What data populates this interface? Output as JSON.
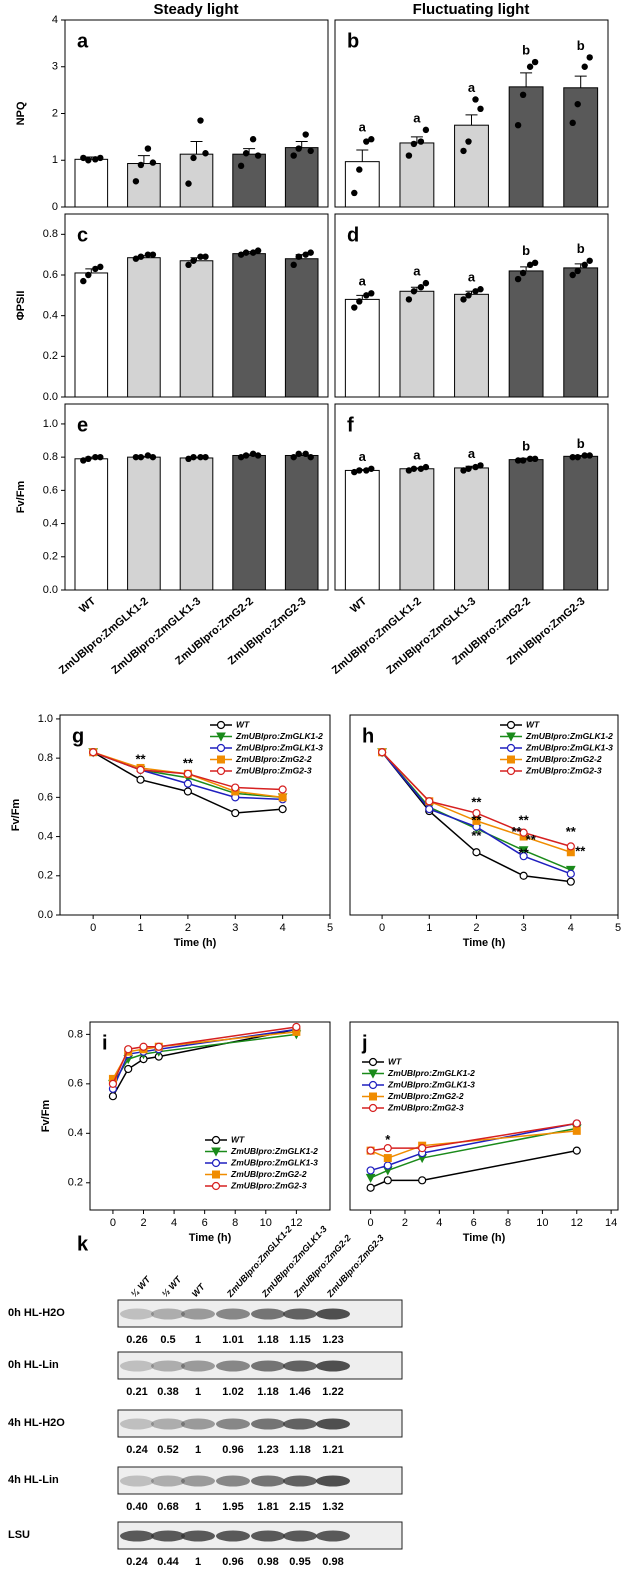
{
  "column_titles": [
    "Steady light",
    "Fluctuating light"
  ],
  "chart_data": [
    {
      "type": "bar",
      "panel": "a",
      "ylabel": "NPQ",
      "ylim": [
        0,
        4
      ],
      "yticks": [
        0,
        1,
        2,
        3,
        4
      ],
      "colors": [
        "#ffffff",
        "#d3d3d3",
        "#d3d3d3",
        "#595959",
        "#595959"
      ],
      "values": [
        1.02,
        0.93,
        1.13,
        1.13,
        1.27
      ],
      "errors": [
        0.05,
        0.17,
        0.27,
        0.12,
        0.13
      ],
      "points": [
        [
          1.05,
          1.0,
          1.02,
          1.05
        ],
        [
          0.55,
          0.9,
          1.25,
          0.95
        ],
        [
          0.5,
          1.05,
          1.85,
          1.15
        ],
        [
          0.88,
          1.15,
          1.45,
          1.1
        ],
        [
          1.1,
          1.25,
          1.55,
          1.2
        ]
      ]
    },
    {
      "type": "bar",
      "panel": "b",
      "ylim": [
        0,
        4
      ],
      "colors": [
        "#ffffff",
        "#d3d3d3",
        "#d3d3d3",
        "#595959",
        "#595959"
      ],
      "values": [
        0.97,
        1.37,
        1.75,
        2.57,
        2.55
      ],
      "errors": [
        0.25,
        0.13,
        0.22,
        0.3,
        0.25
      ],
      "letters": [
        "a",
        "a",
        "a",
        "b",
        "b"
      ],
      "points": [
        [
          0.3,
          0.8,
          1.4,
          1.45
        ],
        [
          1.1,
          1.35,
          1.4,
          1.65
        ],
        [
          1.2,
          1.4,
          2.3,
          2.1
        ],
        [
          1.75,
          2.4,
          3.0,
          3.1
        ],
        [
          1.8,
          2.2,
          3.0,
          3.2
        ]
      ]
    },
    {
      "type": "bar",
      "panel": "c",
      "ylabel": "ΦPSII",
      "ylim": [
        0,
        0.9
      ],
      "yticks": [
        {
          "value": 0,
          "label": "0.0"
        },
        0.2,
        0.4,
        0.6,
        0.8
      ],
      "colors": [
        "#ffffff",
        "#d3d3d3",
        "#d3d3d3",
        "#595959",
        "#595959"
      ],
      "values": [
        0.61,
        0.685,
        0.67,
        0.705,
        0.68
      ],
      "errors": [
        0.02,
        0.01,
        0.015,
        0.01,
        0.02
      ],
      "points": [
        [
          0.57,
          0.6,
          0.63,
          0.64
        ],
        [
          0.68,
          0.69,
          0.7,
          0.7
        ],
        [
          0.65,
          0.67,
          0.69,
          0.69
        ],
        [
          0.7,
          0.71,
          0.71,
          0.72
        ],
        [
          0.65,
          0.69,
          0.7,
          0.71
        ]
      ]
    },
    {
      "type": "bar",
      "panel": "d",
      "ylim": [
        0,
        0.9
      ],
      "colors": [
        "#ffffff",
        "#d3d3d3",
        "#d3d3d3",
        "#595959",
        "#595959"
      ],
      "values": [
        0.48,
        0.52,
        0.505,
        0.62,
        0.635
      ],
      "errors": [
        0.02,
        0.02,
        0.015,
        0.02,
        0.02
      ],
      "letters": [
        "a",
        "a",
        "a",
        "b",
        "b"
      ],
      "points": [
        [
          0.44,
          0.47,
          0.5,
          0.51
        ],
        [
          0.48,
          0.52,
          0.54,
          0.56
        ],
        [
          0.48,
          0.5,
          0.52,
          0.53
        ],
        [
          0.58,
          0.61,
          0.65,
          0.66
        ],
        [
          0.6,
          0.62,
          0.65,
          0.67
        ]
      ]
    },
    {
      "type": "bar",
      "panel": "e",
      "ylabel": "Fv/Fm",
      "ylim": [
        0,
        1.12
      ],
      "yticks": [
        {
          "value": 0,
          "label": "0.0"
        },
        0.2,
        0.4,
        0.6,
        0.8,
        {
          "value": 1,
          "label": "1.0"
        }
      ],
      "colors": [
        "#ffffff",
        "#d3d3d3",
        "#d3d3d3",
        "#595959",
        "#595959"
      ],
      "categories": [
        "WT",
        "ZmUBIpro:ZmGLK1-2",
        "ZmUBIpro:ZmGLK1-3",
        "ZmUBIpro:ZmG2-2",
        "ZmUBIpro:ZmG2-3"
      ],
      "values": [
        0.79,
        0.8,
        0.795,
        0.81,
        0.81
      ],
      "errors": [
        0.01,
        0.005,
        0.005,
        0.008,
        0.01
      ],
      "points": [
        [
          0.78,
          0.79,
          0.8,
          0.8
        ],
        [
          0.8,
          0.8,
          0.81,
          0.8
        ],
        [
          0.79,
          0.8,
          0.8,
          0.8
        ],
        [
          0.8,
          0.81,
          0.82,
          0.81
        ],
        [
          0.8,
          0.82,
          0.82,
          0.8
        ]
      ]
    },
    {
      "type": "bar",
      "panel": "f",
      "ylim": [
        0,
        1.12
      ],
      "colors": [
        "#ffffff",
        "#d3d3d3",
        "#d3d3d3",
        "#595959",
        "#595959"
      ],
      "categories": [
        "WT",
        "ZmUBIpro:ZmGLK1-2",
        "ZmUBIpro:ZmGLK1-3",
        "ZmUBIpro:ZmG2-2",
        "ZmUBIpro:ZmG2-3"
      ],
      "values": [
        0.72,
        0.73,
        0.735,
        0.785,
        0.805
      ],
      "errors": [
        0.005,
        0.005,
        0.01,
        0.008,
        0.005
      ],
      "letters": [
        "a",
        "a",
        "a",
        "b",
        "b"
      ],
      "points": [
        [
          0.71,
          0.72,
          0.72,
          0.73
        ],
        [
          0.72,
          0.73,
          0.73,
          0.74
        ],
        [
          0.72,
          0.73,
          0.74,
          0.75
        ],
        [
          0.78,
          0.78,
          0.79,
          0.79
        ],
        [
          0.8,
          0.8,
          0.81,
          0.81
        ]
      ]
    },
    {
      "type": "line",
      "panel": "g",
      "ylabel": "Fv/Fm",
      "xlabel": "Time (h)",
      "xlim": [
        -0.7,
        5
      ],
      "xticks": [
        0,
        1,
        2,
        3,
        4,
        5
      ],
      "ylim": [
        0,
        1.02
      ],
      "yticks": [
        {
          "value": 0,
          "label": "0.0"
        },
        0.2,
        0.4,
        0.6,
        0.8,
        {
          "value": 1,
          "label": "1.0"
        }
      ],
      "legend": "upper center",
      "x": [
        0,
        1,
        2,
        3,
        4
      ],
      "series": [
        {
          "name": "WT",
          "color": "#000000",
          "marker": "circle-open",
          "values": [
            0.83,
            0.69,
            0.63,
            0.52,
            0.54
          ]
        },
        {
          "name": "ZmUBIpro:ZmGLK1-2",
          "color": "#1a8a1a",
          "marker": "triangle",
          "values": [
            0.83,
            0.74,
            0.7,
            0.62,
            0.6
          ]
        },
        {
          "name": "ZmUBIpro:ZmGLK1-3",
          "color": "#1f1fbf",
          "marker": "circle-open",
          "values": [
            0.83,
            0.74,
            0.67,
            0.6,
            0.59
          ]
        },
        {
          "name": "ZmUBIpro:ZmG2-2",
          "color": "#f08c00",
          "marker": "square",
          "values": [
            0.83,
            0.75,
            0.72,
            0.63,
            0.6
          ]
        },
        {
          "name": "ZmUBIpro:ZmG2-3",
          "color": "#d62020",
          "marker": "circle-open",
          "values": [
            0.83,
            0.74,
            0.72,
            0.65,
            0.64
          ]
        }
      ],
      "annotations": [
        {
          "text": "**",
          "x": 1,
          "y": 0.79
        },
        {
          "text": "**",
          "x": 2,
          "y": 0.77
        }
      ]
    },
    {
      "type": "line",
      "panel": "h",
      "xlabel": "Time (h)",
      "xlim": [
        -0.68,
        5
      ],
      "xticks": [
        0,
        1,
        2,
        3,
        4,
        5
      ],
      "ylim": [
        0,
        1.02
      ],
      "legend": "upper center",
      "x": [
        0,
        1,
        2,
        3,
        4
      ],
      "series": [
        {
          "name": "WT",
          "color": "#000000",
          "marker": "circle-open",
          "values": [
            0.83,
            0.53,
            0.32,
            0.2,
            0.17
          ]
        },
        {
          "name": "ZmUBIpro:ZmGLK1-2",
          "color": "#1a8a1a",
          "marker": "triangle",
          "values": [
            0.83,
            0.55,
            0.44,
            0.33,
            0.23
          ]
        },
        {
          "name": "ZmUBIpro:ZmGLK1-3",
          "color": "#1f1fbf",
          "marker": "circle-open",
          "values": [
            0.83,
            0.54,
            0.45,
            0.3,
            0.21
          ]
        },
        {
          "name": "ZmUBIpro:ZmG2-2",
          "color": "#f08c00",
          "marker": "square",
          "values": [
            0.83,
            0.58,
            0.48,
            0.4,
            0.32
          ]
        },
        {
          "name": "ZmUBIpro:ZmG2-3",
          "color": "#d62020",
          "marker": "circle-open",
          "values": [
            0.83,
            0.58,
            0.52,
            0.42,
            0.35
          ]
        }
      ],
      "annotations": [
        {
          "text": "**",
          "x": 2,
          "y": 0.57
        },
        {
          "text": "**",
          "x": 2,
          "y": 0.48
        },
        {
          "text": "**",
          "x": 2,
          "y": 0.4
        },
        {
          "text": "**",
          "x": 3,
          "y": 0.48
        },
        {
          "text": "**",
          "x": 2.85,
          "y": 0.42
        },
        {
          "text": "**",
          "x": 3.15,
          "y": 0.38
        },
        {
          "text": "**",
          "x": 3,
          "y": 0.31
        },
        {
          "text": "**",
          "x": 4,
          "y": 0.42
        },
        {
          "text": "**",
          "x": 4.2,
          "y": 0.32
        }
      ]
    },
    {
      "type": "line",
      "panel": "i",
      "ylabel": "Fv/Fm",
      "xlabel": "Time (h)",
      "xlim": [
        -1.5,
        14.2
      ],
      "xticks": [
        0,
        2,
        4,
        6,
        8,
        10,
        12
      ],
      "ylim": [
        0.09,
        0.85
      ],
      "yticks": [
        0.2,
        0.4,
        0.6,
        0.8
      ],
      "legend": "lower right",
      "x": [
        0,
        1,
        2,
        3,
        12
      ],
      "series": [
        {
          "name": "WT",
          "color": "#000000",
          "marker": "circle-open",
          "values": [
            0.55,
            0.66,
            0.7,
            0.71,
            0.82
          ]
        },
        {
          "name": "ZmUBIpro:ZmGLK1-2",
          "color": "#1a8a1a",
          "marker": "triangle",
          "values": [
            0.6,
            0.7,
            0.72,
            0.73,
            0.8
          ]
        },
        {
          "name": "ZmUBIpro:ZmGLK1-3",
          "color": "#1f1fbf",
          "marker": "circle-open",
          "values": [
            0.58,
            0.72,
            0.73,
            0.74,
            0.82
          ]
        },
        {
          "name": "ZmUBIpro:ZmG2-2",
          "color": "#f08c00",
          "marker": "square",
          "values": [
            0.62,
            0.73,
            0.74,
            0.75,
            0.81
          ]
        },
        {
          "name": "ZmUBIpro:ZmG2-3",
          "color": "#d62020",
          "marker": "circle-open",
          "values": [
            0.6,
            0.74,
            0.75,
            0.75,
            0.83
          ]
        }
      ]
    },
    {
      "type": "line",
      "panel": "j",
      "xlabel": "Time (h)",
      "xlim": [
        -1.2,
        14.4
      ],
      "xticks": [
        0,
        2,
        4,
        6,
        8,
        10,
        12,
        14
      ],
      "ylim": [
        0.09,
        0.85
      ],
      "legend": "upper left",
      "x": [
        0,
        1,
        3,
        12
      ],
      "series": [
        {
          "name": "WT",
          "color": "#000000",
          "marker": "circle-open",
          "values": [
            0.18,
            0.21,
            0.21,
            0.33
          ]
        },
        {
          "name": "ZmUBIpro:ZmGLK1-2",
          "color": "#1a8a1a",
          "marker": "triangle",
          "values": [
            0.22,
            0.25,
            0.3,
            0.42
          ]
        },
        {
          "name": "ZmUBIpro:ZmGLK1-3",
          "color": "#1f1fbf",
          "marker": "circle-open",
          "values": [
            0.25,
            0.27,
            0.32,
            0.44
          ]
        },
        {
          "name": "ZmUBIpro:ZmG2-2",
          "color": "#f08c00",
          "marker": "square",
          "values": [
            0.33,
            0.3,
            0.35,
            0.41
          ]
        },
        {
          "name": "ZmUBIpro:ZmG2-3",
          "color": "#d62020",
          "marker": "circle-open",
          "values": [
            0.33,
            0.34,
            0.34,
            0.44
          ]
        }
      ],
      "annotations": [
        {
          "text": "*",
          "x": 1,
          "y": 0.37
        }
      ]
    }
  ],
  "blot": {
    "panel": "k",
    "lanes": [
      "¼ WT",
      "½ WT",
      "WT",
      "ZmUBIpro:ZmGLK1-2",
      "ZmUBIpro:ZmGLK1-3",
      "ZmUBIpro:ZmG2-2",
      "ZmUBIpro:ZmG2-3"
    ],
    "rows": [
      {
        "label": "0h HL-H2O",
        "values": [
          "0.26",
          "0.5",
          "1",
          "1.01",
          "1.18",
          "1.15",
          "1.23"
        ]
      },
      {
        "label": "0h HL-Lin",
        "values": [
          "0.21",
          "0.38",
          "1",
          "1.02",
          "1.18",
          "1.46",
          "1.22"
        ]
      },
      {
        "label": "4h HL-H2O",
        "values": [
          "0.24",
          "0.52",
          "1",
          "0.96",
          "1.23",
          "1.18",
          "1.21"
        ]
      },
      {
        "label": "4h HL-Lin",
        "values": [
          "0.40",
          "0.68",
          "1",
          "1.95",
          "1.81",
          "2.15",
          "1.32"
        ]
      },
      {
        "label": "LSU",
        "values": [
          "0.24",
          "0.44",
          "1",
          "0.96",
          "0.98",
          "0.95",
          "0.98"
        ]
      }
    ]
  }
}
